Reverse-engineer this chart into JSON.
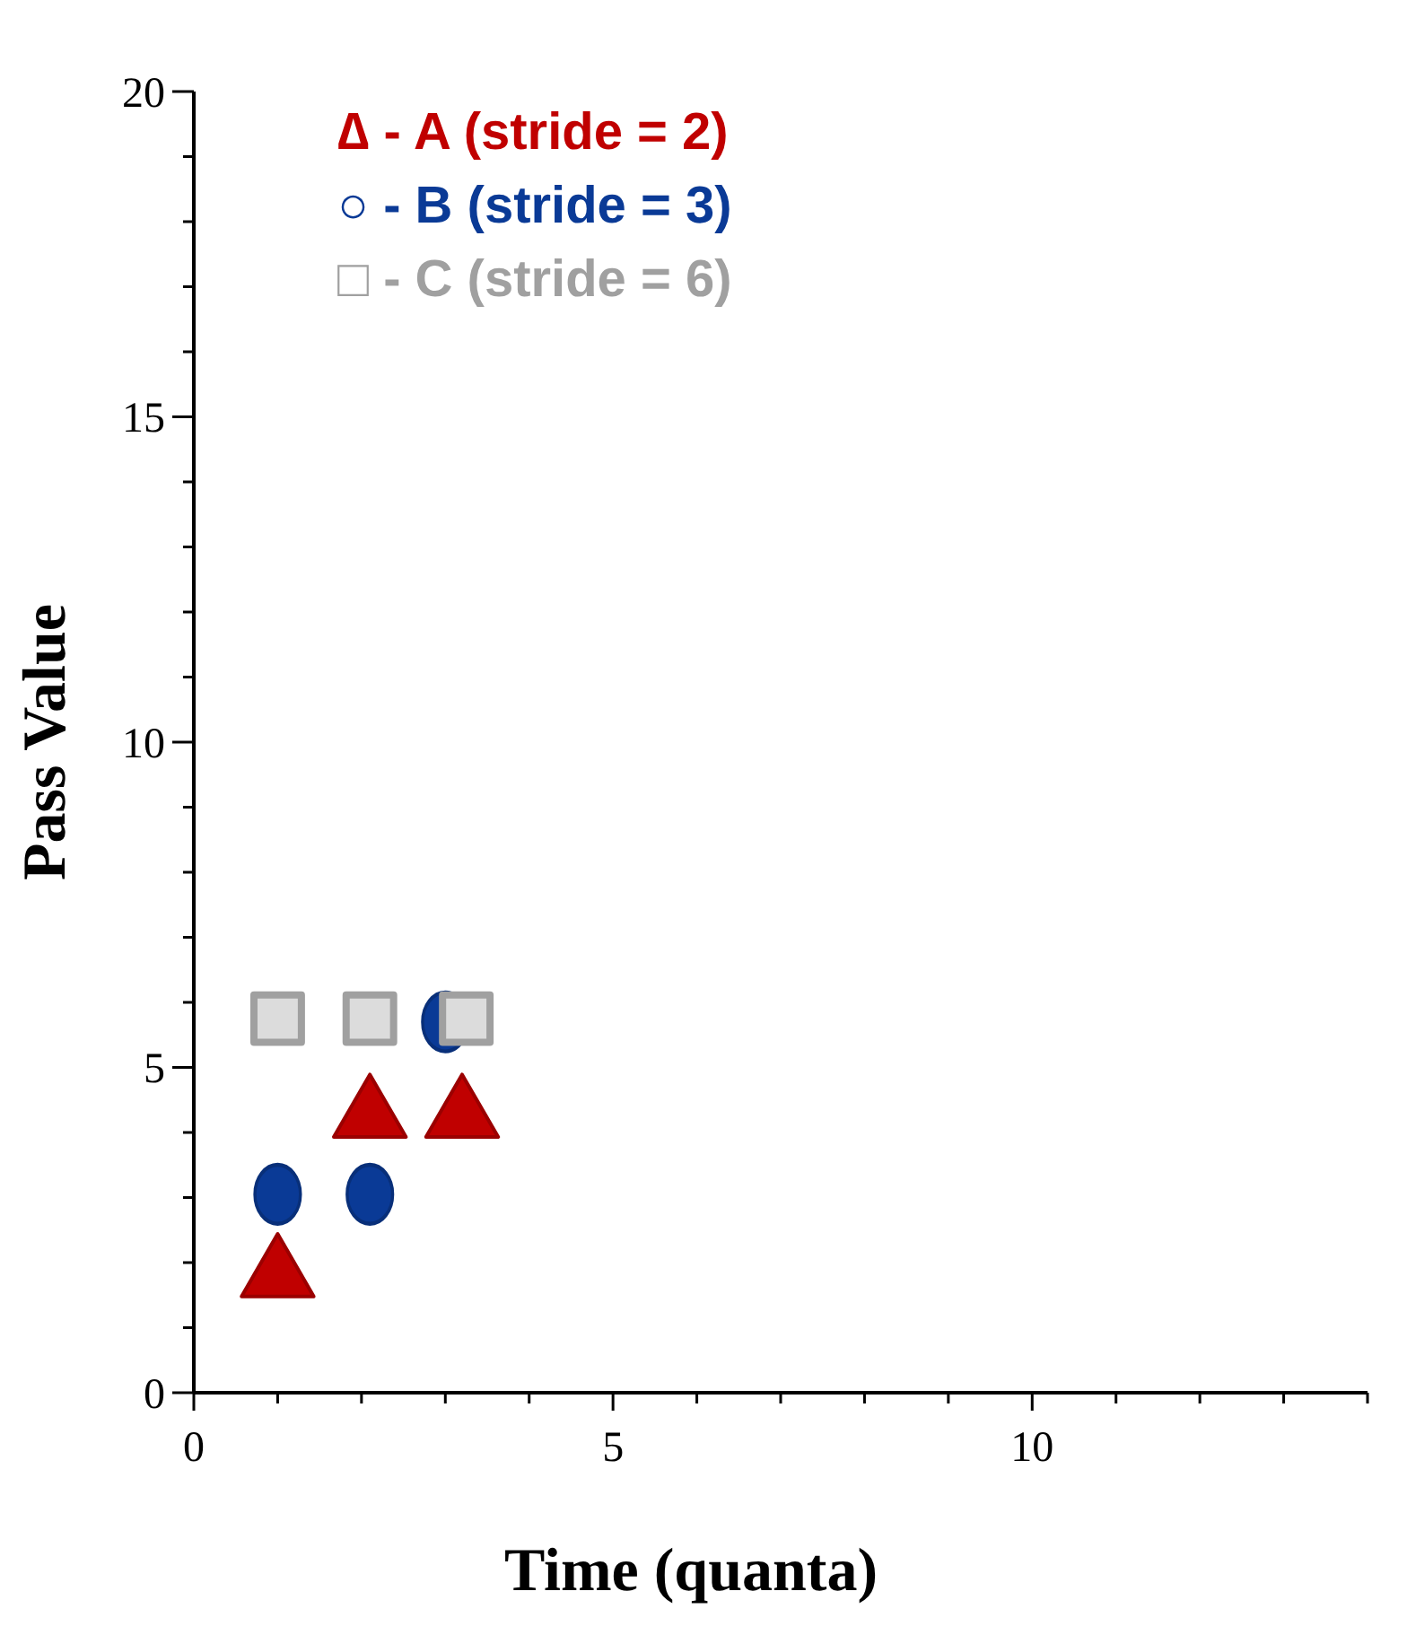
{
  "chart_data": {
    "type": "scatter",
    "xlabel": "Time (quanta)",
    "ylabel": "Pass Value",
    "xlim": [
      0,
      14
    ],
    "ylim": [
      0,
      20
    ],
    "xticks": [
      0,
      {
        "value": 1,
        "label": null
      },
      {
        "value": 2,
        "label": null
      },
      {
        "value": 3,
        "label": null
      },
      {
        "value": 4,
        "label": null
      },
      5,
      {
        "value": 6,
        "label": null
      },
      {
        "value": 7,
        "label": null
      },
      {
        "value": 8,
        "label": null
      },
      {
        "value": 9,
        "label": null
      },
      10,
      {
        "value": 11,
        "label": null
      },
      {
        "value": 12,
        "label": null
      },
      {
        "value": 13,
        "label": null
      },
      {
        "value": 14,
        "label": null
      }
    ],
    "yticks": [
      0,
      {
        "value": 1,
        "label": null
      },
      {
        "value": 2,
        "label": null
      },
      {
        "value": 3,
        "label": null
      },
      {
        "value": 4,
        "label": null
      },
      5,
      {
        "value": 6,
        "label": null
      },
      {
        "value": 7,
        "label": null
      },
      {
        "value": 8,
        "label": null
      },
      {
        "value": 9,
        "label": null
      },
      10,
      {
        "value": 11,
        "label": null
      },
      {
        "value": 12,
        "label": null
      },
      {
        "value": 13,
        "label": null
      },
      {
        "value": 14,
        "label": null
      },
      15,
      {
        "value": 16,
        "label": null
      },
      {
        "value": 17,
        "label": null
      },
      {
        "value": 18,
        "label": null
      },
      {
        "value": 19,
        "label": null
      },
      20
    ],
    "grid": false,
    "legend": "top left",
    "series": [
      {
        "name": "∆ - A (stride = 2)",
        "color": "#c00000",
        "marker": "triangle",
        "x": [
          1,
          2.1,
          3.2
        ],
        "values": [
          1.8,
          4.25,
          4.25
        ]
      },
      {
        "name": "○ - B (stride = 3)",
        "color": "#0a3a96",
        "marker": "circle",
        "x": [
          1,
          2.1,
          3
        ],
        "values": [
          3.05,
          3.05,
          5.7
        ]
      },
      {
        "name": "□ - C (stride = 6)",
        "color": "#a0a0a0",
        "marker": "square",
        "x": [
          1,
          2.1,
          3.25
        ],
        "values": [
          5.75,
          5.75,
          5.75
        ]
      }
    ]
  }
}
